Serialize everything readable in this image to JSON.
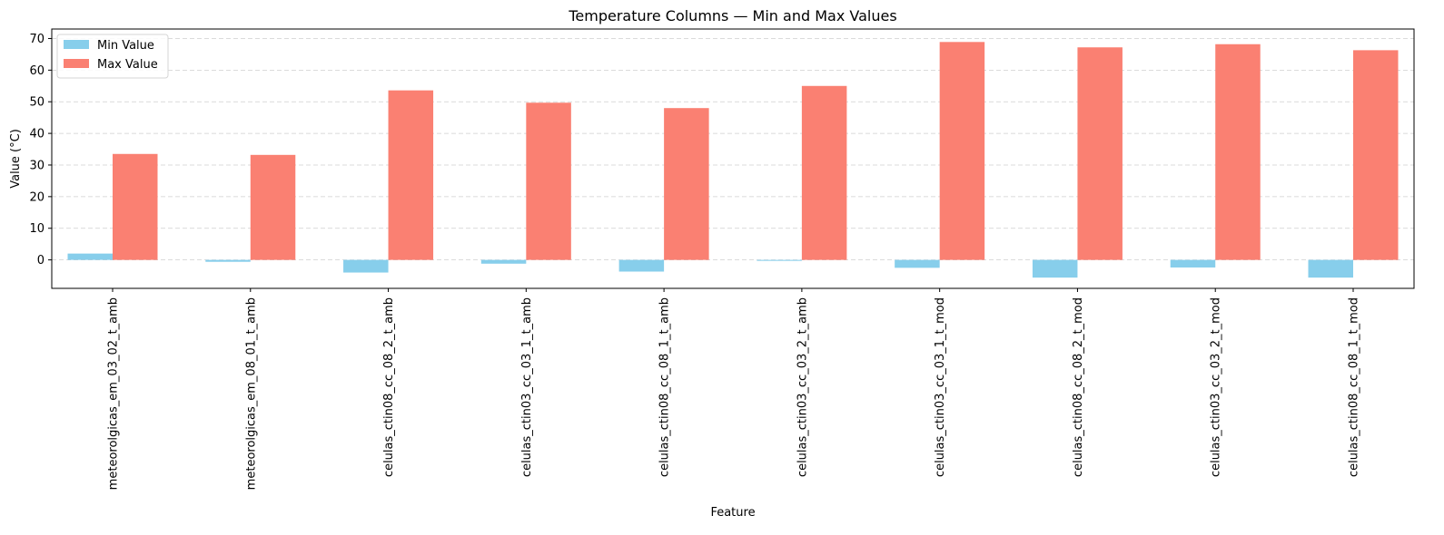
{
  "chart_data": {
    "type": "bar",
    "title": "Temperature Columns — Min and Max Values",
    "xlabel": "Feature",
    "ylabel": "Value (°C)",
    "categories": [
      "meteorolgicas_em_03_02_t_amb",
      "meteorolgicas_em_08_01_t_amb",
      "celulas_ctin08_cc_08_2_t_amb",
      "celulas_ctin03_cc_03_1_t_amb",
      "celulas_ctin08_cc_08_1_t_amb",
      "celulas_ctin03_cc_03_2_t_amb",
      "celulas_ctin03_cc_03_1_t_mod",
      "celulas_ctin08_cc_08_2_t_mod",
      "celulas_ctin03_cc_03_2_t_mod",
      "celulas_ctin08_cc_08_1_t_mod"
    ],
    "series": [
      {
        "name": "Min Value",
        "color": "#87ceeb",
        "values": [
          2.0,
          -0.6,
          -4.0,
          -1.2,
          -3.7,
          -0.3,
          -2.5,
          -5.6,
          -2.4,
          -5.6
        ]
      },
      {
        "name": "Max Value",
        "color": "#fa8072",
        "values": [
          33.5,
          33.2,
          53.6,
          49.7,
          48.0,
          55.0,
          68.9,
          67.2,
          68.2,
          66.3
        ]
      }
    ],
    "ylim": [
      -9,
      73
    ],
    "yticks": [
      0,
      10,
      20,
      30,
      40,
      50,
      60,
      70
    ],
    "grid": "y, dashed",
    "legend_position": "top-left"
  }
}
